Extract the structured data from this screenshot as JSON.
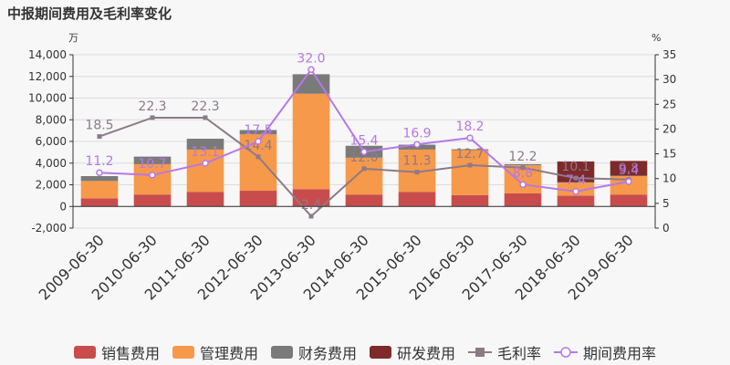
{
  "chart_data": {
    "type": "bar",
    "title": "中报期间费用及毛利率变化",
    "left_unit": "万",
    "right_unit": "%",
    "categories": [
      "2009-06-30",
      "2010-06-30",
      "2011-06-30",
      "2012-06-30",
      "2013-06-30",
      "2014-06-30",
      "2015-06-30",
      "2016-06-30",
      "2017-06-30",
      "2018-06-30",
      "2019-06-30"
    ],
    "y_left": {
      "min": -2000,
      "max": 14000,
      "ticks": [
        "-2,000",
        "0",
        "2,000",
        "4,000",
        "6,000",
        "8,000",
        "10,000",
        "12,000",
        "14,000"
      ]
    },
    "y_right": {
      "min": 0,
      "max": 35,
      "ticks": [
        "0",
        "5",
        "10",
        "15",
        "20",
        "25",
        "30",
        "35"
      ]
    },
    "bar_series": [
      {
        "name": "销售费用",
        "color": "#c94c4c",
        "values": [
          750,
          1100,
          1350,
          1450,
          1600,
          1100,
          1350,
          1050,
          1200,
          1000,
          1100
        ]
      },
      {
        "name": "管理费用",
        "color": "#f7994a",
        "values": [
          1600,
          2800,
          3900,
          5200,
          8800,
          3400,
          3900,
          4150,
          2600,
          1200,
          1700
        ]
      },
      {
        "name": "财务费用",
        "color": "#7a7a7a",
        "values": [
          450,
          700,
          1000,
          400,
          1800,
          1100,
          450,
          80,
          100,
          50,
          50
        ]
      },
      {
        "name": "研发费用",
        "color": "#7f2a2a",
        "values": [
          0,
          0,
          0,
          0,
          0,
          0,
          0,
          0,
          0,
          1900,
          1350
        ]
      }
    ],
    "line_series": [
      {
        "name": "毛利率",
        "color": "#8c7a8a",
        "marker": "square",
        "values": [
          18.5,
          22.3,
          22.3,
          14.4,
          2.4,
          12.0,
          11.3,
          12.7,
          12.2,
          10.1,
          9.8
        ]
      },
      {
        "name": "期间费用率",
        "color": "#b678e6",
        "marker": "circle",
        "values": [
          11.2,
          10.7,
          13.1,
          17.5,
          32.0,
          15.4,
          16.9,
          18.2,
          8.8,
          7.4,
          9.4
        ]
      }
    ],
    "line_labels": {
      "毛利率": [
        "18.5",
        "22.3",
        "22.3",
        "14.4",
        "2.4",
        "12.0",
        "11.3",
        "12.7",
        "12.2",
        "10.1",
        "9.8"
      ],
      "期间费用率": [
        "11.2",
        "10.7",
        "13.1",
        "17.5",
        "32.0",
        "15.4",
        "16.9",
        "18.2",
        "8.8",
        "7.4",
        "9.4"
      ]
    },
    "legend_position": "bottom",
    "grid": true
  }
}
